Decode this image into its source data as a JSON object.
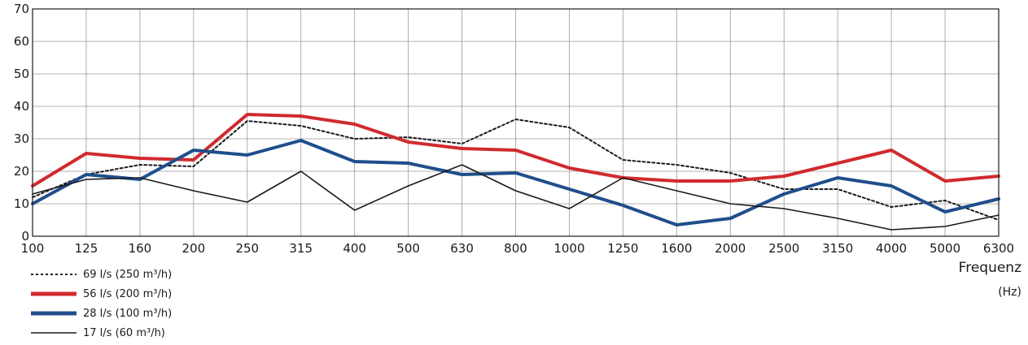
{
  "chart_data": {
    "type": "line",
    "title": "",
    "xlabel": "Frequenz",
    "xlabel_unit": "(Hz)",
    "ylabel": "",
    "categories": [
      "100",
      "125",
      "160",
      "200",
      "250",
      "315",
      "400",
      "500",
      "630",
      "800",
      "1000",
      "1250",
      "1600",
      "2000",
      "2500",
      "3150",
      "4000",
      "5000",
      "6300"
    ],
    "ylim": [
      0,
      70
    ],
    "yticks": [
      "0",
      "10",
      "20",
      "30",
      "40",
      "50",
      "60",
      "70"
    ],
    "grid": true,
    "legend_position": "bottom-left",
    "series": [
      {
        "name": "69 l/s (250 m³/h)",
        "color": "#1a1a1a",
        "style": "dotted",
        "width": 2,
        "values": [
          12,
          19,
          22,
          21.5,
          35.5,
          34,
          30,
          30.5,
          28.5,
          36,
          33.5,
          23.5,
          22,
          19.5,
          14.5,
          14.5,
          9,
          11,
          5
        ]
      },
      {
        "name": "56 l/s (200 m³/h)",
        "color": "#d12a2f",
        "style": "solid",
        "width": 4,
        "values": [
          15.5,
          25.5,
          24,
          23.5,
          37.5,
          37,
          34.5,
          29,
          27,
          26.5,
          21,
          18,
          17,
          17,
          18.5,
          22.5,
          26.5,
          17,
          18.5
        ]
      },
      {
        "name": "28 l/s (100 m³/h)",
        "color": "#1f4e8c",
        "style": "solid",
        "width": 4,
        "values": [
          10,
          19,
          17.5,
          26.5,
          25,
          29.5,
          23,
          22.5,
          19,
          19.5,
          14.5,
          9.5,
          3.5,
          5.5,
          13,
          18,
          15.5,
          7.5,
          11.5
        ]
      },
      {
        "name": "17 l/s (60 m³/h)",
        "color": "#1a1a1a",
        "style": "solid",
        "width": 1.6,
        "values": [
          13,
          17.5,
          18,
          14,
          10.5,
          20,
          8,
          15.5,
          22,
          14,
          8.5,
          18,
          14,
          10,
          8.5,
          5.5,
          2,
          3,
          6.5
        ]
      }
    ]
  }
}
